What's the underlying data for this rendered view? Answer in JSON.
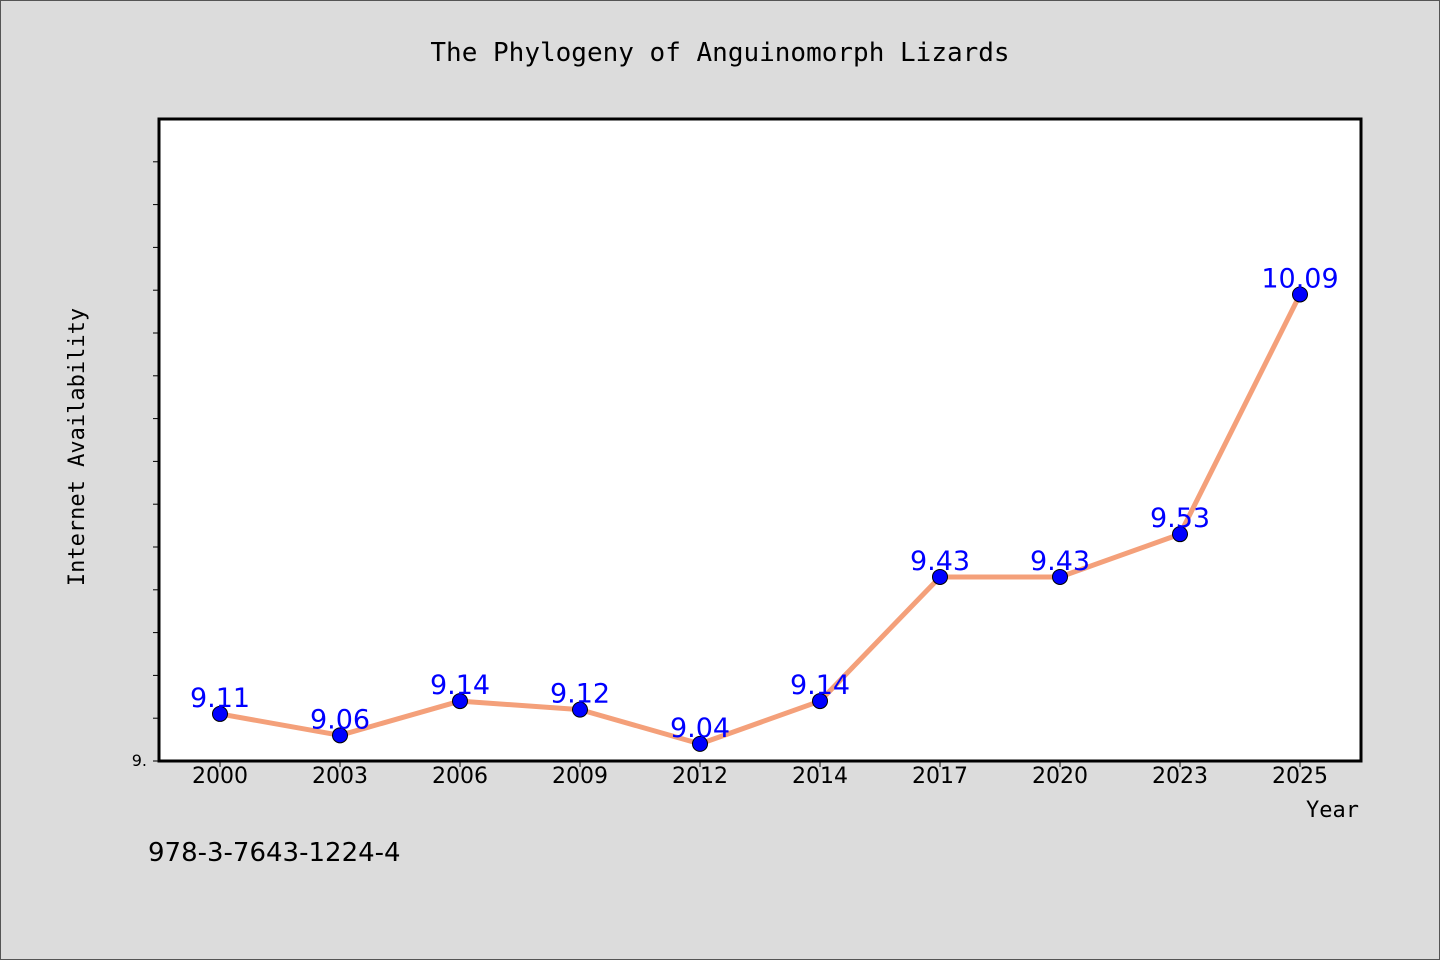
{
  "chart_data": {
    "type": "line",
    "title": "The Phylogeny of Anguinomorph Lizards",
    "xlabel": "Year",
    "ylabel": "Internet Availability",
    "categories": [
      "2000",
      "2003",
      "2006",
      "2009",
      "2012",
      "2014",
      "2017",
      "2020",
      "2023",
      "2025"
    ],
    "series": [
      {
        "values": [
          9.11,
          9.06,
          9.14,
          9.12,
          9.04,
          9.14,
          9.43,
          9.43,
          9.53,
          10.09
        ],
        "labels": [
          "9.11",
          "9.06",
          "9.14",
          "9.12",
          "9.04",
          "9.14",
          "9.43",
          "9.43",
          "9.53",
          "10.09"
        ],
        "line_color": "#f4a07a",
        "marker_color": "#0000ff",
        "label_color": "#0000ff"
      }
    ],
    "ylim": [
      9.0,
      10.5
    ],
    "y_tick_label": "9.",
    "grid": false,
    "legend": false
  },
  "footer": {
    "isbn": "978-3-7643-1224-4"
  }
}
